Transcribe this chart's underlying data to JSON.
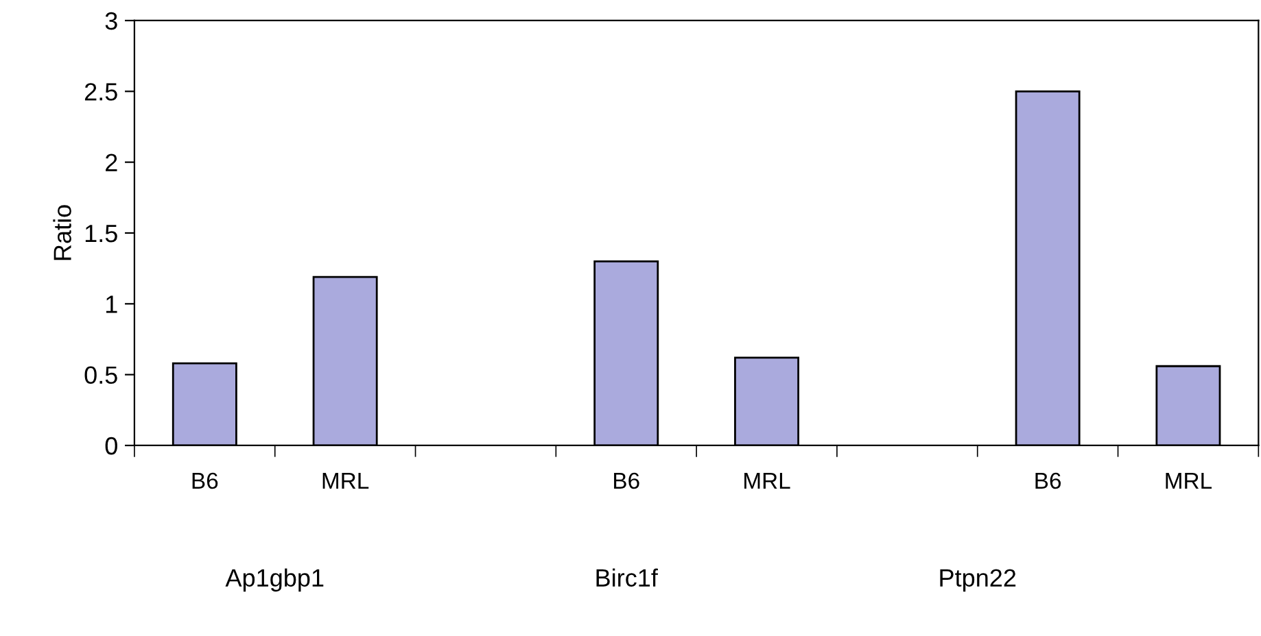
{
  "chart_data": {
    "type": "bar",
    "ylabel": "Ratio",
    "categories": [
      "B6",
      "MRL",
      null,
      "B6",
      "MRL",
      null,
      "B6",
      "MRL"
    ],
    "values": [
      0.58,
      1.19,
      null,
      1.3,
      0.62,
      null,
      2.5,
      0.56
    ],
    "color": "#aaaadd",
    "ylim": [
      0,
      3
    ],
    "yticks": [
      0,
      0.5,
      1,
      1.5,
      2,
      2.5,
      3
    ],
    "annotations": [
      "Ap1gbp1",
      "Birc1f",
      "Ptpn22"
    ]
  }
}
